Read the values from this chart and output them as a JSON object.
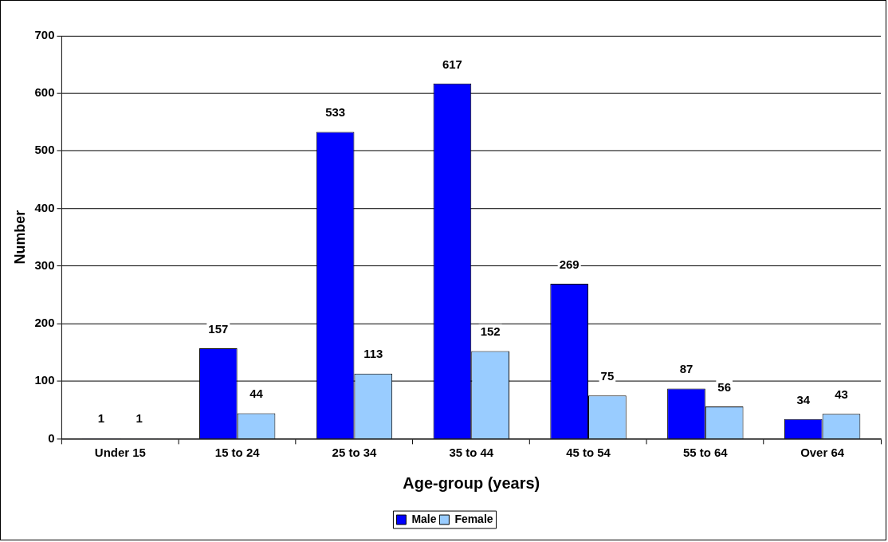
{
  "chart_data": {
    "type": "bar",
    "xlabel": "Age-group (years)",
    "ylabel": "Number",
    "categories": [
      "Under 15",
      "15 to 24",
      "25 to 34",
      "35 to 44",
      "45 to 54",
      "55 to 64",
      "Over 64"
    ],
    "series": [
      {
        "name": "Male",
        "color": "#0000ff",
        "values": [
          1,
          157,
          533,
          617,
          269,
          87,
          34
        ]
      },
      {
        "name": "Female",
        "color": "#99ccff",
        "values": [
          1,
          44,
          113,
          152,
          75,
          56,
          43
        ]
      }
    ],
    "ylim": [
      0,
      700
    ],
    "yticks": [
      0,
      100,
      200,
      300,
      400,
      500,
      600,
      700
    ],
    "grid": "y",
    "legend": "bottom",
    "data_labels": true
  }
}
